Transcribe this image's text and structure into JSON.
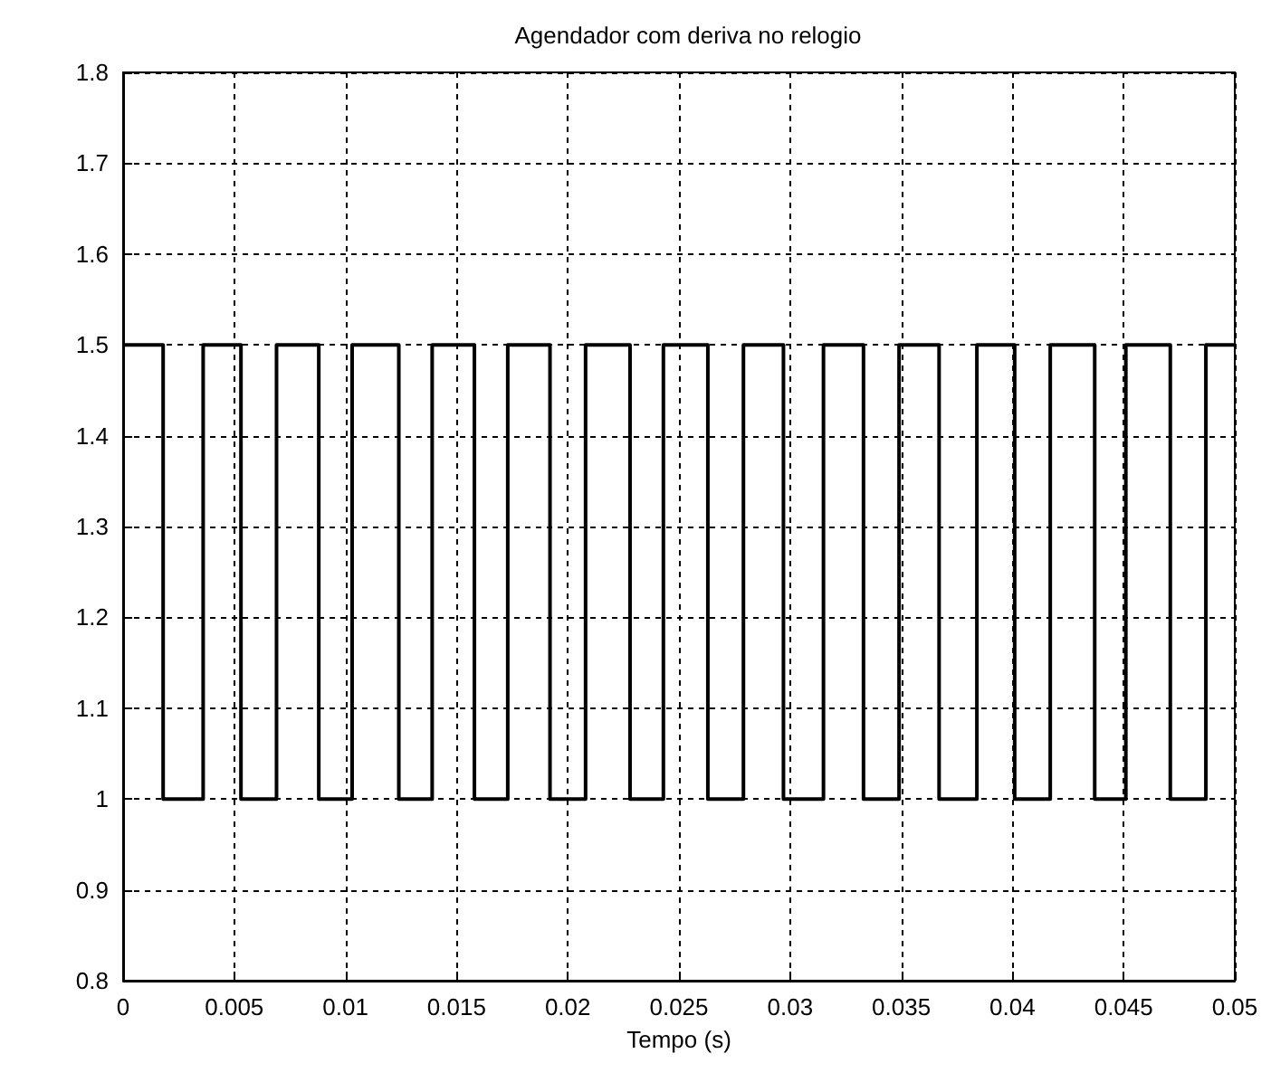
{
  "chart_data": {
    "type": "step",
    "title": "Agendador com deriva no relogio",
    "xlabel": "Tempo (s)",
    "x": [
      0,
      0.0018,
      0.0036,
      0.0053,
      0.0069,
      0.0088,
      0.0103,
      0.0124,
      0.0139,
      0.0158,
      0.0173,
      0.0192,
      0.0208,
      0.0228,
      0.0243,
      0.0263,
      0.0279,
      0.0297,
      0.0315,
      0.0333,
      0.0349,
      0.0367,
      0.0384,
      0.0401,
      0.0417,
      0.0437,
      0.0451,
      0.0471,
      0.0487,
      0.05
    ],
    "series": [
      {
        "color": "#000000",
        "values": [
          1.5,
          1,
          1.5,
          1,
          1.5,
          1,
          1.5,
          1,
          1.5,
          1,
          1.5,
          1,
          1.5,
          1,
          1.5,
          1,
          1.5,
          1,
          1.5,
          1,
          1.5,
          1,
          1.5,
          1,
          1.5,
          1,
          1.5,
          1,
          1.5,
          1.5
        ]
      }
    ],
    "xlim": [
      0,
      0.05
    ],
    "xticks": [
      0,
      0.005,
      0.01,
      0.015,
      0.02,
      0.025,
      0.03,
      0.035,
      0.04,
      0.045,
      0.05
    ],
    "ylim": [
      0.8,
      1.8
    ],
    "yticks": [
      0.8,
      0.9,
      1,
      1.1,
      1.2,
      1.3,
      1.4,
      1.5,
      1.6,
      1.7,
      1.8
    ],
    "grid": true,
    "marker": "none",
    "line_style": "solid"
  }
}
